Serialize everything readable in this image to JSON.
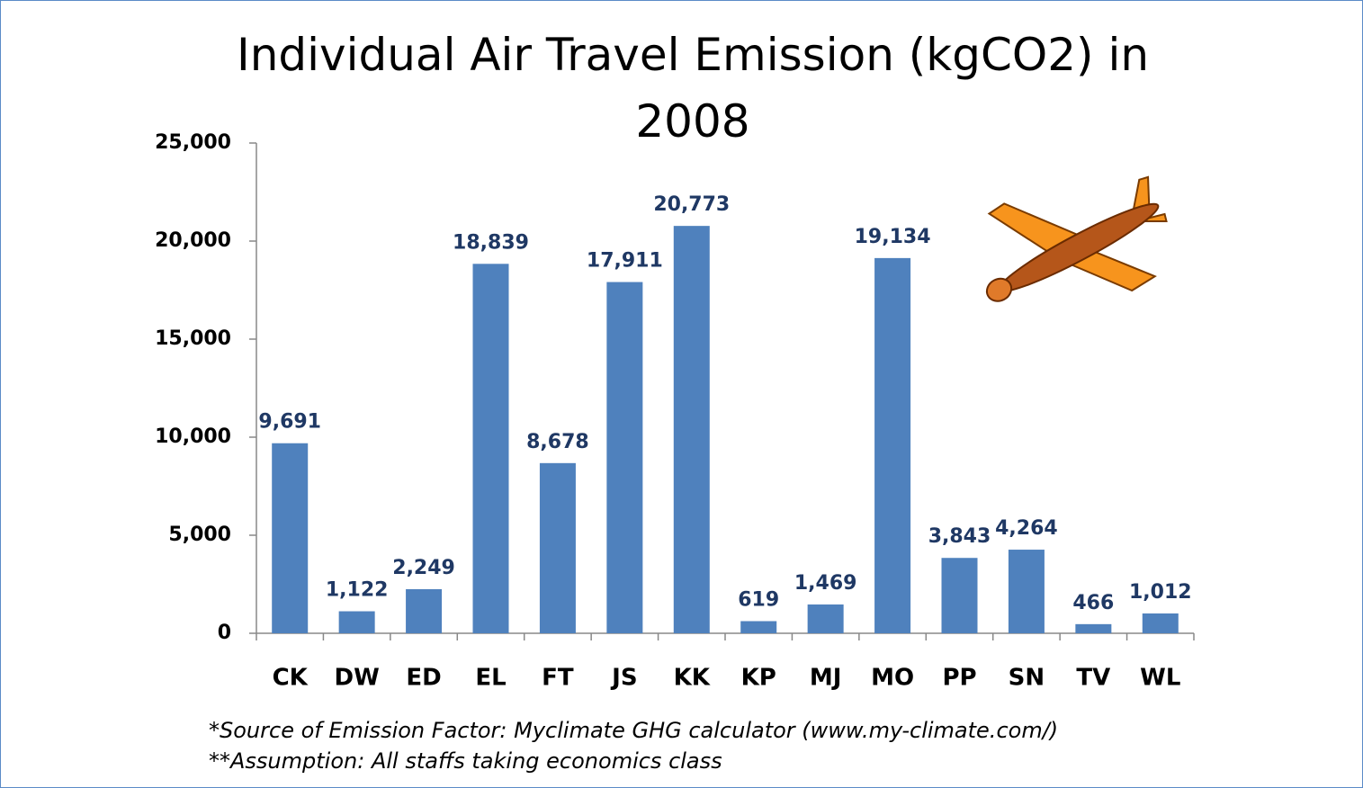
{
  "chart_data": {
    "type": "bar",
    "title": "Individual Air Travel Emission (kgCO2) in 2008",
    "categories": [
      "CK",
      "DW",
      "ED",
      "EL",
      "FT",
      "JS",
      "KK",
      "KP",
      "MJ",
      "MO",
      "PP",
      "SN",
      "TV",
      "WL"
    ],
    "values": [
      9691,
      1122,
      2249,
      18839,
      8678,
      17911,
      20773,
      619,
      1469,
      19134,
      3843,
      4264,
      466,
      1012
    ],
    "value_labels": [
      "9,691",
      "1,122",
      "2,249",
      "18,839",
      "8,678",
      "17,911",
      "20,773",
      "619",
      "1,469",
      "19,134",
      "3,843",
      "4,264",
      "466",
      "1,012"
    ],
    "color": "#4f81bd",
    "ylim": [
      0,
      25000
    ],
    "yticks": [
      0,
      {
        "value": 5000,
        "label": "5,000"
      },
      {
        "value": 10000,
        "label": "10,000"
      },
      {
        "value": 15000,
        "label": "15,000"
      },
      {
        "value": 20000,
        "label": "20,000"
      },
      {
        "value": 25000,
        "label": "25,000"
      }
    ],
    "grid": false,
    "notes": [
      "*Source of Emission Factor: Myclimate GHG calculator (www.my-climate.com/)",
      "**Assumption: All staffs taking economics class"
    ]
  }
}
